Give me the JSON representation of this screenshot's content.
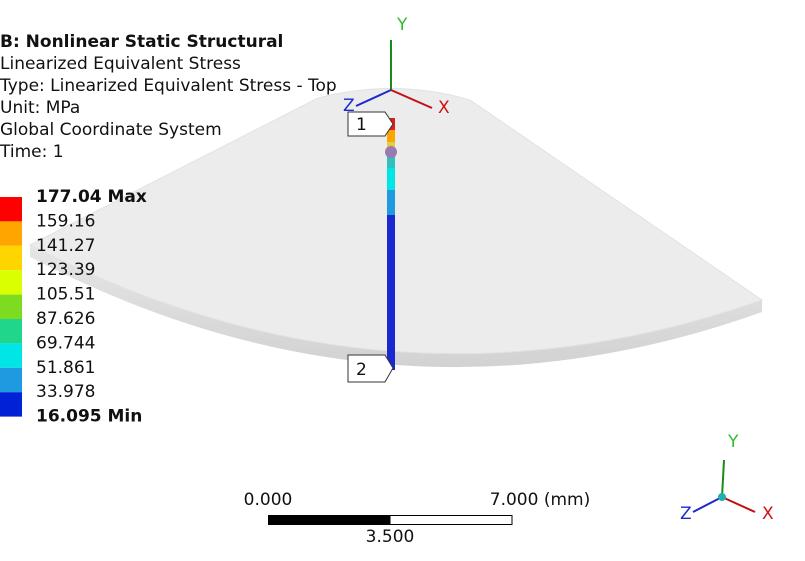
{
  "header": {
    "title": "B: Nonlinear Static Structural",
    "lines": [
      "Linearized Equivalent Stress",
      "Type: Linearized Equivalent Stress - Top",
      "Unit: MPa",
      "Global Coordinate System",
      "Time: 1"
    ]
  },
  "legend": {
    "labels": [
      "177.04 Max",
      "159.16",
      "141.27",
      "123.39",
      "105.51",
      "87.626",
      "69.744",
      "51.861",
      "33.978",
      "16.095 Min"
    ],
    "colors": [
      "#ff0000",
      "#ffa500",
      "#ffd500",
      "#d9ff00",
      "#7ddc1f",
      "#1fd68a",
      "#00e5e5",
      "#1e9be0",
      "#0022d6"
    ]
  },
  "probes": [
    "1",
    "2"
  ],
  "triad": {
    "x": "X",
    "y": "Y",
    "z": "Z"
  },
  "scale": {
    "start": "0.000",
    "mid": "3.500",
    "end": "7.000 (mm)"
  },
  "corner_triad": {
    "x": "X",
    "y": "Y",
    "z": "Z"
  }
}
